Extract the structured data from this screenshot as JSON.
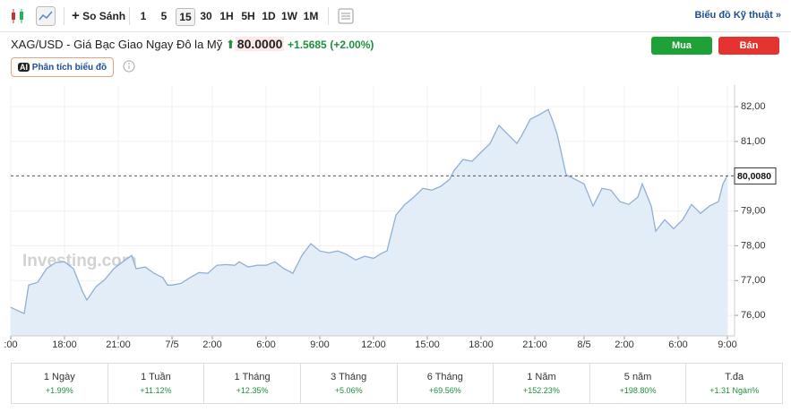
{
  "toolbar": {
    "compare": "So Sánh",
    "intervals": [
      "1",
      "5",
      "15",
      "30",
      "1H",
      "5H",
      "1D",
      "1W",
      "1M"
    ],
    "active_interval": "15",
    "technical_link": "Biểu đồ Kỹ thuật »"
  },
  "header": {
    "title": "XAG/USD - Giá Bạc Giao Ngay Đô la Mỹ",
    "price": "80.0000",
    "change": "+1.5685",
    "change_percent": "(+2.00%)",
    "buy": "Mua",
    "sell": "Bán"
  },
  "ai_badge": {
    "icon": "AI",
    "label": "Phân tích biểu đồ"
  },
  "chart_data": {
    "type": "area",
    "watermark": "Investing.com",
    "color": "#8fb0d6",
    "fill": "#e3edf7",
    "grid": true,
    "x": [
      0,
      3,
      4,
      6,
      8,
      10,
      12,
      14,
      16,
      17,
      19,
      21,
      23,
      25,
      27,
      28,
      30,
      32,
      34,
      35,
      36,
      38,
      40,
      42,
      44,
      46,
      48,
      50,
      51,
      53,
      55,
      57,
      59,
      61,
      63,
      65,
      67,
      69,
      71,
      73,
      75,
      77,
      79,
      81,
      83,
      84,
      86,
      88,
      90,
      92,
      94,
      96,
      98,
      99,
      101,
      103,
      105,
      107,
      109,
      111,
      113,
      114,
      116,
      118,
      120,
      121,
      122,
      124,
      126,
      128,
      130,
      132,
      134,
      136,
      138,
      140,
      141,
      143,
      144,
      146,
      148,
      150,
      152,
      154,
      156,
      158,
      159,
      160
    ],
    "values": [
      76.23,
      76.05,
      76.87,
      76.95,
      77.34,
      77.52,
      77.54,
      77.34,
      76.69,
      76.44,
      76.82,
      77.03,
      77.34,
      77.54,
      77.72,
      77.34,
      77.39,
      77.21,
      77.08,
      76.87,
      76.87,
      76.92,
      77.08,
      77.23,
      77.21,
      77.44,
      77.46,
      77.44,
      77.54,
      77.39,
      77.44,
      77.44,
      77.54,
      77.34,
      77.21,
      77.72,
      78.06,
      77.85,
      77.8,
      77.85,
      77.75,
      77.59,
      77.7,
      77.64,
      77.8,
      77.85,
      78.88,
      79.19,
      79.4,
      79.65,
      79.6,
      79.71,
      79.91,
      80.17,
      80.48,
      80.43,
      80.69,
      80.94,
      81.46,
      81.2,
      80.94,
      81.15,
      81.64,
      81.77,
      81.92,
      81.59,
      81.2,
      80.04,
      79.91,
      79.78,
      79.14,
      79.65,
      79.6,
      79.27,
      79.19,
      79.4,
      79.78,
      79.14,
      78.42,
      78.75,
      78.49,
      78.75,
      79.19,
      78.93,
      79.14,
      79.27,
      79.78,
      80.02
    ],
    "xlim": [
      0,
      160
    ],
    "ylim": [
      75.41,
      82.62
    ],
    "xticks": [
      {
        "value": 0,
        "label": ":00"
      },
      {
        "value": 12,
        "label": "18:00"
      },
      {
        "value": 24,
        "label": "21:00"
      },
      {
        "value": 36,
        "label": "7/5"
      },
      {
        "value": 45,
        "label": "2:00"
      },
      {
        "value": 57,
        "label": "6:00"
      },
      {
        "value": 69,
        "label": "9:00"
      },
      {
        "value": 81,
        "label": "12:00"
      },
      {
        "value": 93,
        "label": "15:00"
      },
      {
        "value": 105,
        "label": "18:00"
      },
      {
        "value": 117,
        "label": "21:00"
      },
      {
        "value": 128,
        "label": "8/5"
      },
      {
        "value": 137,
        "label": "2:00"
      },
      {
        "value": 149,
        "label": "6:00"
      },
      {
        "value": 160,
        "label": "9:00"
      }
    ],
    "yticks": [
      {
        "value": 76,
        "label": "76,00"
      },
      {
        "value": 77,
        "label": "77,00"
      },
      {
        "value": 78,
        "label": "78,00"
      },
      {
        "value": 79,
        "label": "79,00"
      },
      {
        "value": 81,
        "label": "81,00"
      },
      {
        "value": 82,
        "label": "82,00"
      }
    ],
    "last_price": {
      "value": 80.008,
      "label": "80,0080"
    }
  },
  "performance": [
    {
      "period": "1 Ngày",
      "change": "+1.99%"
    },
    {
      "period": "1 Tuần",
      "change": "+11.12%"
    },
    {
      "period": "1 Tháng",
      "change": "+12.35%"
    },
    {
      "period": "3 Tháng",
      "change": "+5.06%"
    },
    {
      "period": "6 Tháng",
      "change": "+69.56%"
    },
    {
      "period": "1 Năm",
      "change": "+152.23%"
    },
    {
      "period": "5 năm",
      "change": "+198.80%"
    },
    {
      "period": "T.đa",
      "change": "+1.31 Ngàn%"
    }
  ]
}
